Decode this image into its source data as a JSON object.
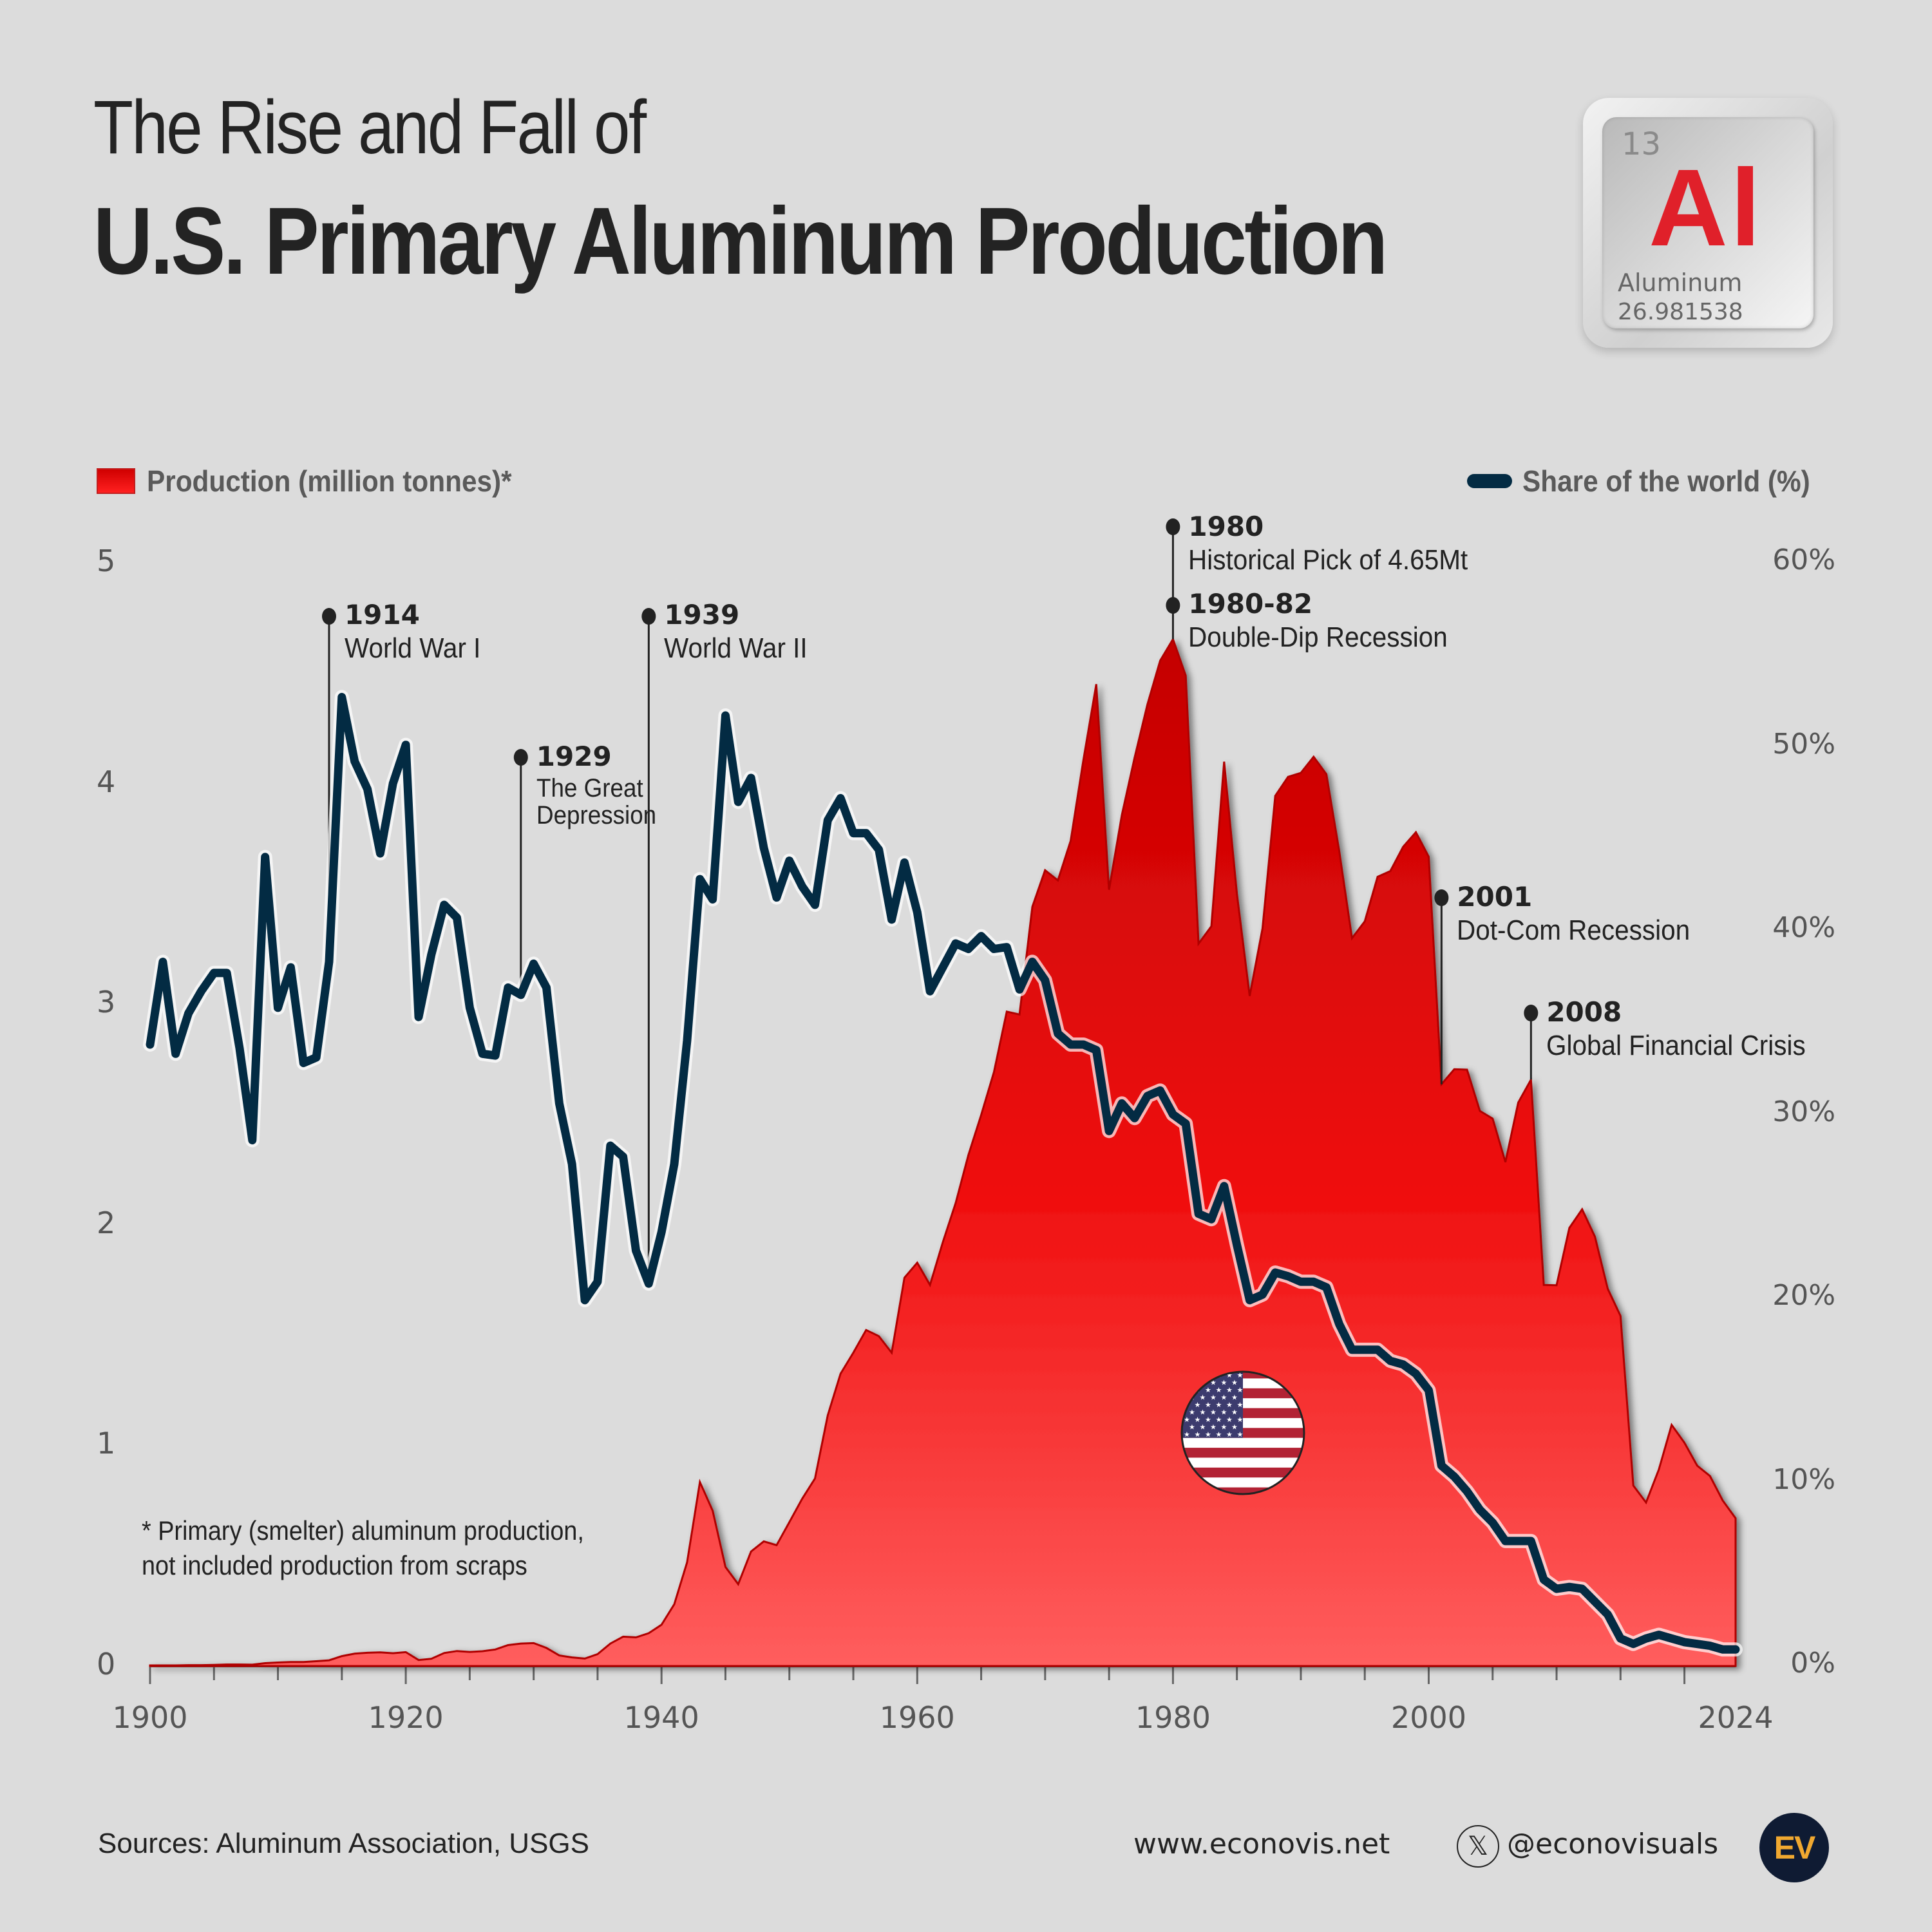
{
  "header": {
    "title_line1": "The Rise and Fall of",
    "title_line2": "U.S. Primary Aluminum Production"
  },
  "element_tile": {
    "atomic_number": "13",
    "symbol": "Al",
    "name": "Aluminum",
    "atomic_mass": "26.981538",
    "symbol_color": "#e0202a"
  },
  "legend": {
    "production_label": "Production (million tonnes)*",
    "share_label": "Share of the world (%)"
  },
  "footnote": {
    "line1": "* Primary (smelter) aluminum production,",
    "line2": "not included production from scraps"
  },
  "footer": {
    "sources": "Sources: Aluminum Association, USGS",
    "website": "www.econovis.net",
    "x_icon": "x-logo-icon",
    "handle": "@econovisuals",
    "logo_text": "EV"
  },
  "flag_icon": "us-flag-icon",
  "colors": {
    "background": "#dcdcdc",
    "area_top": "#c40000",
    "area_bottom": "#ff5a5a",
    "line": "#032b43",
    "logo_bg": "#0f1b33",
    "logo_fg": "#f0a830"
  },
  "chart_data": {
    "type": "area+line (dual axis)",
    "title": "The Rise and Fall of U.S. Primary Aluminum Production",
    "x_ticks": [
      "1900",
      "1920",
      "1940",
      "1960",
      "1980",
      "2000",
      "2024"
    ],
    "x_range": [
      1900,
      2024
    ],
    "left_axis": {
      "label": "Production (million tonnes)*",
      "ticks": [
        "0",
        "1",
        "2",
        "3",
        "4",
        "5"
      ],
      "range": [
        0,
        5
      ]
    },
    "right_axis": {
      "label": "Share of the world (%)",
      "ticks": [
        "0%",
        "10%",
        "20%",
        "30%",
        "40%",
        "50%",
        "60%"
      ],
      "range": [
        0,
        60
      ]
    },
    "grid": false,
    "legend_position": "top",
    "years_start": 1900,
    "series": [
      {
        "name": "Production (million tonnes)",
        "kind": "area",
        "values": [
          0.003,
          0.003,
          0.003,
          0.004,
          0.004,
          0.005,
          0.007,
          0.007,
          0.006,
          0.013,
          0.016,
          0.018,
          0.018,
          0.022,
          0.026,
          0.045,
          0.056,
          0.06,
          0.062,
          0.058,
          0.063,
          0.027,
          0.033,
          0.059,
          0.068,
          0.064,
          0.067,
          0.075,
          0.095,
          0.102,
          0.104,
          0.082,
          0.048,
          0.039,
          0.034,
          0.054,
          0.102,
          0.133,
          0.13,
          0.149,
          0.187,
          0.28,
          0.47,
          0.834,
          0.704,
          0.449,
          0.371,
          0.519,
          0.565,
          0.548,
          0.652,
          0.758,
          0.85,
          1.136,
          1.325,
          1.42,
          1.523,
          1.495,
          1.42,
          1.76,
          1.828,
          1.727,
          1.921,
          2.098,
          2.316,
          2.498,
          2.692,
          2.966,
          2.953,
          3.441,
          3.607,
          3.561,
          3.74,
          4.109,
          4.45,
          3.519,
          3.857,
          4.117,
          4.358,
          4.557,
          4.654,
          4.489,
          3.274,
          3.353,
          4.099,
          3.5,
          3.037,
          3.343,
          3.944,
          4.03,
          4.048,
          4.121,
          4.042,
          3.695,
          3.299,
          3.375,
          3.577,
          3.603,
          3.713,
          3.779,
          3.668,
          2.637,
          2.705,
          2.703,
          2.516,
          2.481,
          2.284,
          2.554,
          2.658,
          1.727,
          1.726,
          1.986,
          2.07,
          1.946,
          1.71,
          1.587,
          0.818,
          0.741,
          0.891,
          1.093,
          1.012,
          0.908,
          0.861,
          0.75,
          0.67
        ]
      },
      {
        "name": "Share of the world (%)",
        "kind": "line",
        "values": [
          33.8,
          38.3,
          33.3,
          35.5,
          36.7,
          37.7,
          37.7,
          33.6,
          28.6,
          44.0,
          35.8,
          38.0,
          32.8,
          33.1,
          38.3,
          52.7,
          49.2,
          47.7,
          44.2,
          48.0,
          50.1,
          35.3,
          38.7,
          41.4,
          40.7,
          35.8,
          33.3,
          33.2,
          36.9,
          36.5,
          38.2,
          36.9,
          30.6,
          27.3,
          19.9,
          20.9,
          28.3,
          27.7,
          22.6,
          20.8,
          23.6,
          27.3,
          34.0,
          42.8,
          41.7,
          51.7,
          47.0,
          48.3,
          44.5,
          41.8,
          43.8,
          42.4,
          41.4,
          46.0,
          47.2,
          45.3,
          45.3,
          44.4,
          40.6,
          43.7,
          41.0,
          36.7,
          38.0,
          39.3,
          39.0,
          39.7,
          39.0,
          39.1,
          36.8,
          38.3,
          37.3,
          34.4,
          33.8,
          33.8,
          33.5,
          29.1,
          30.6,
          29.8,
          31.0,
          31.3,
          30.0,
          29.5,
          24.6,
          24.3,
          26.1,
          22.9,
          19.9,
          20.2,
          21.4,
          21.2,
          20.9,
          20.9,
          20.6,
          18.6,
          17.2,
          17.2,
          17.2,
          16.6,
          16.4,
          15.9,
          15.0,
          10.9,
          10.3,
          9.5,
          8.5,
          7.8,
          6.8,
          6.8,
          6.8,
          4.7,
          4.2,
          4.3,
          4.2,
          3.5,
          2.8,
          1.5,
          1.2,
          1.5,
          1.7,
          1.5,
          1.3,
          1.2,
          1.1,
          0.9,
          0.9
        ]
      }
    ],
    "annotations": [
      {
        "year": 1914,
        "label": "1914",
        "text": "World War I"
      },
      {
        "year": 1929,
        "label": "1929",
        "text": "The Great Depression"
      },
      {
        "year": 1939,
        "label": "1939",
        "text": "World War II"
      },
      {
        "year": 1980,
        "label": "1980",
        "text": "Historical Pick of 4.65Mt"
      },
      {
        "year": 1980,
        "label": "1980-82",
        "text": "Double-Dip Recession"
      },
      {
        "year": 2001,
        "label": "2001",
        "text": "Dot-Com Recession"
      },
      {
        "year": 2008,
        "label": "2008",
        "text": "Global Financial Crisis"
      }
    ],
    "footnote": "* Primary (smelter) aluminum production, not included production from scraps"
  }
}
